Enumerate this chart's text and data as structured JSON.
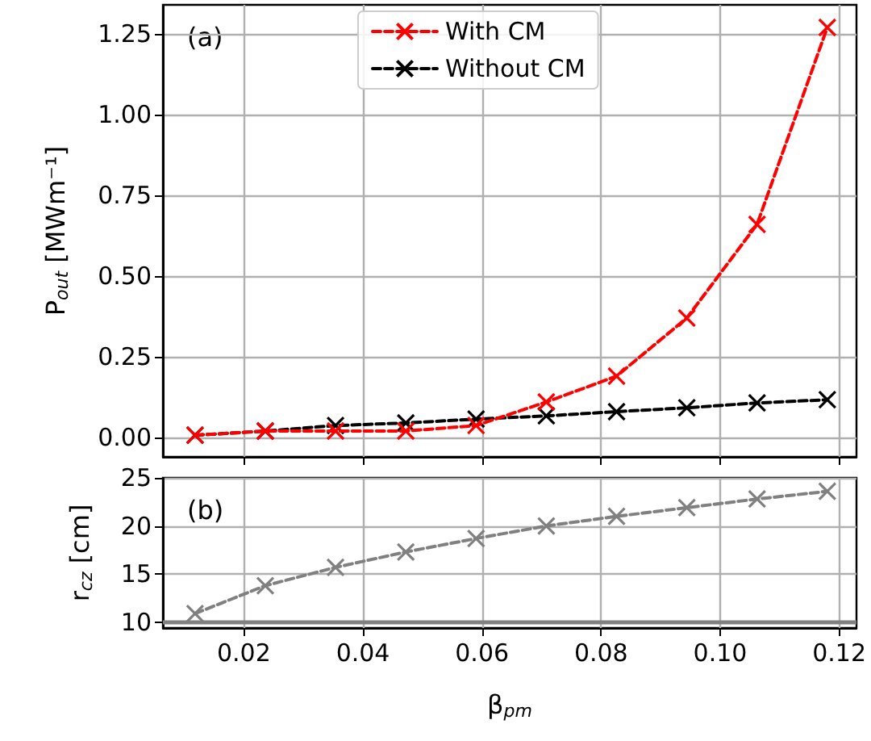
{
  "chart_data": [
    {
      "type": "line",
      "ylabel": "P$_{out}$ [MWm⁻¹]",
      "annotations": [
        "(a)"
      ],
      "x": [
        0.0118,
        0.0236,
        0.0354,
        0.0472,
        0.059,
        0.0708,
        0.0826,
        0.0944,
        0.1062,
        0.118
      ],
      "series": [
        {
          "name": "With CM",
          "color": "#ff0000",
          "values": [
            0.007,
            0.02,
            0.02,
            0.02,
            0.037,
            0.11,
            0.19,
            0.37,
            0.66,
            1.27
          ]
        },
        {
          "name": "Without CM",
          "color": "#000000",
          "values": [
            0.007,
            0.02,
            0.037,
            0.045,
            0.057,
            0.067,
            0.08,
            0.092,
            0.107,
            0.117
          ]
        }
      ],
      "xlim": [
        0.0064,
        0.1229
      ],
      "xticks": [
        0.02,
        0.04,
        0.06,
        0.08,
        0.1,
        0.12
      ],
      "ylim": [
        -0.06,
        1.34
      ],
      "yticks": [
        {
          "value": 0,
          "label": "0.00"
        },
        0.25,
        {
          "value": 0.5,
          "label": "0.50"
        },
        0.75,
        {
          "value": 1,
          "label": "1.00"
        },
        1.25
      ],
      "tick_labels": "y",
      "grid": true,
      "legend": "top",
      "marker": "cross",
      "line_style": "dashed"
    },
    {
      "type": "line",
      "xlabel": "β$_{pm}$",
      "ylabel": "r$_{cz}$ [cm]",
      "annotations": [
        "(b)"
      ],
      "x": [
        0.0118,
        0.0236,
        0.0354,
        0.0472,
        0.059,
        0.0708,
        0.0826,
        0.0944,
        0.1062,
        0.118
      ],
      "series": [
        {
          "color": "#808080",
          "values": [
            10.9,
            13.8,
            15.7,
            17.3,
            18.7,
            20,
            21,
            21.9,
            22.8,
            23.6
          ]
        }
      ],
      "xlim": [
        0.0064,
        0.1229
      ],
      "xticks": [
        0.02,
        0.04,
        0.06,
        0.08,
        {
          "value": 0.1,
          "label": "0.10"
        },
        0.12
      ],
      "ylim": [
        9.4,
        25
      ],
      "yticks": [
        10,
        15,
        20,
        25
      ],
      "ref_lines": [
        {
          "axis": "y",
          "value": 10,
          "color": "#808080"
        }
      ],
      "grid": true,
      "marker": "cross",
      "line_style": "dashed"
    }
  ]
}
